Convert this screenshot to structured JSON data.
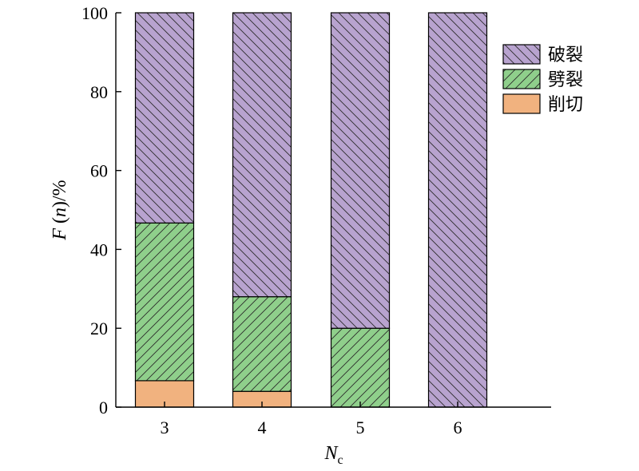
{
  "chart_data": {
    "type": "bar",
    "stacked": true,
    "categories": [
      "3",
      "4",
      "5",
      "6"
    ],
    "series": [
      {
        "name": "削切",
        "values": [
          6.7,
          4,
          0,
          0
        ],
        "color": "#f1b27f",
        "hatch": "none"
      },
      {
        "name": "劈裂",
        "values": [
          40,
          24,
          20,
          0
        ],
        "color": "#8fcf8b",
        "hatch": "forward"
      },
      {
        "name": "破裂",
        "values": [
          53.3,
          72,
          80,
          100
        ],
        "color": "#b8a3cf",
        "hatch": "backward"
      }
    ],
    "legend_order": [
      "破裂",
      "劈裂",
      "削切"
    ],
    "legend_position": "top-right",
    "ylim": [
      0,
      100
    ],
    "yticks": [
      0,
      20,
      40,
      60,
      80,
      100
    ],
    "ylabel": {
      "italic": "F",
      "rest": " (",
      "italic2": "n",
      "tail": ")/%"
    },
    "xlabel": {
      "main": "N",
      "sub": "c"
    },
    "grid": false
  }
}
